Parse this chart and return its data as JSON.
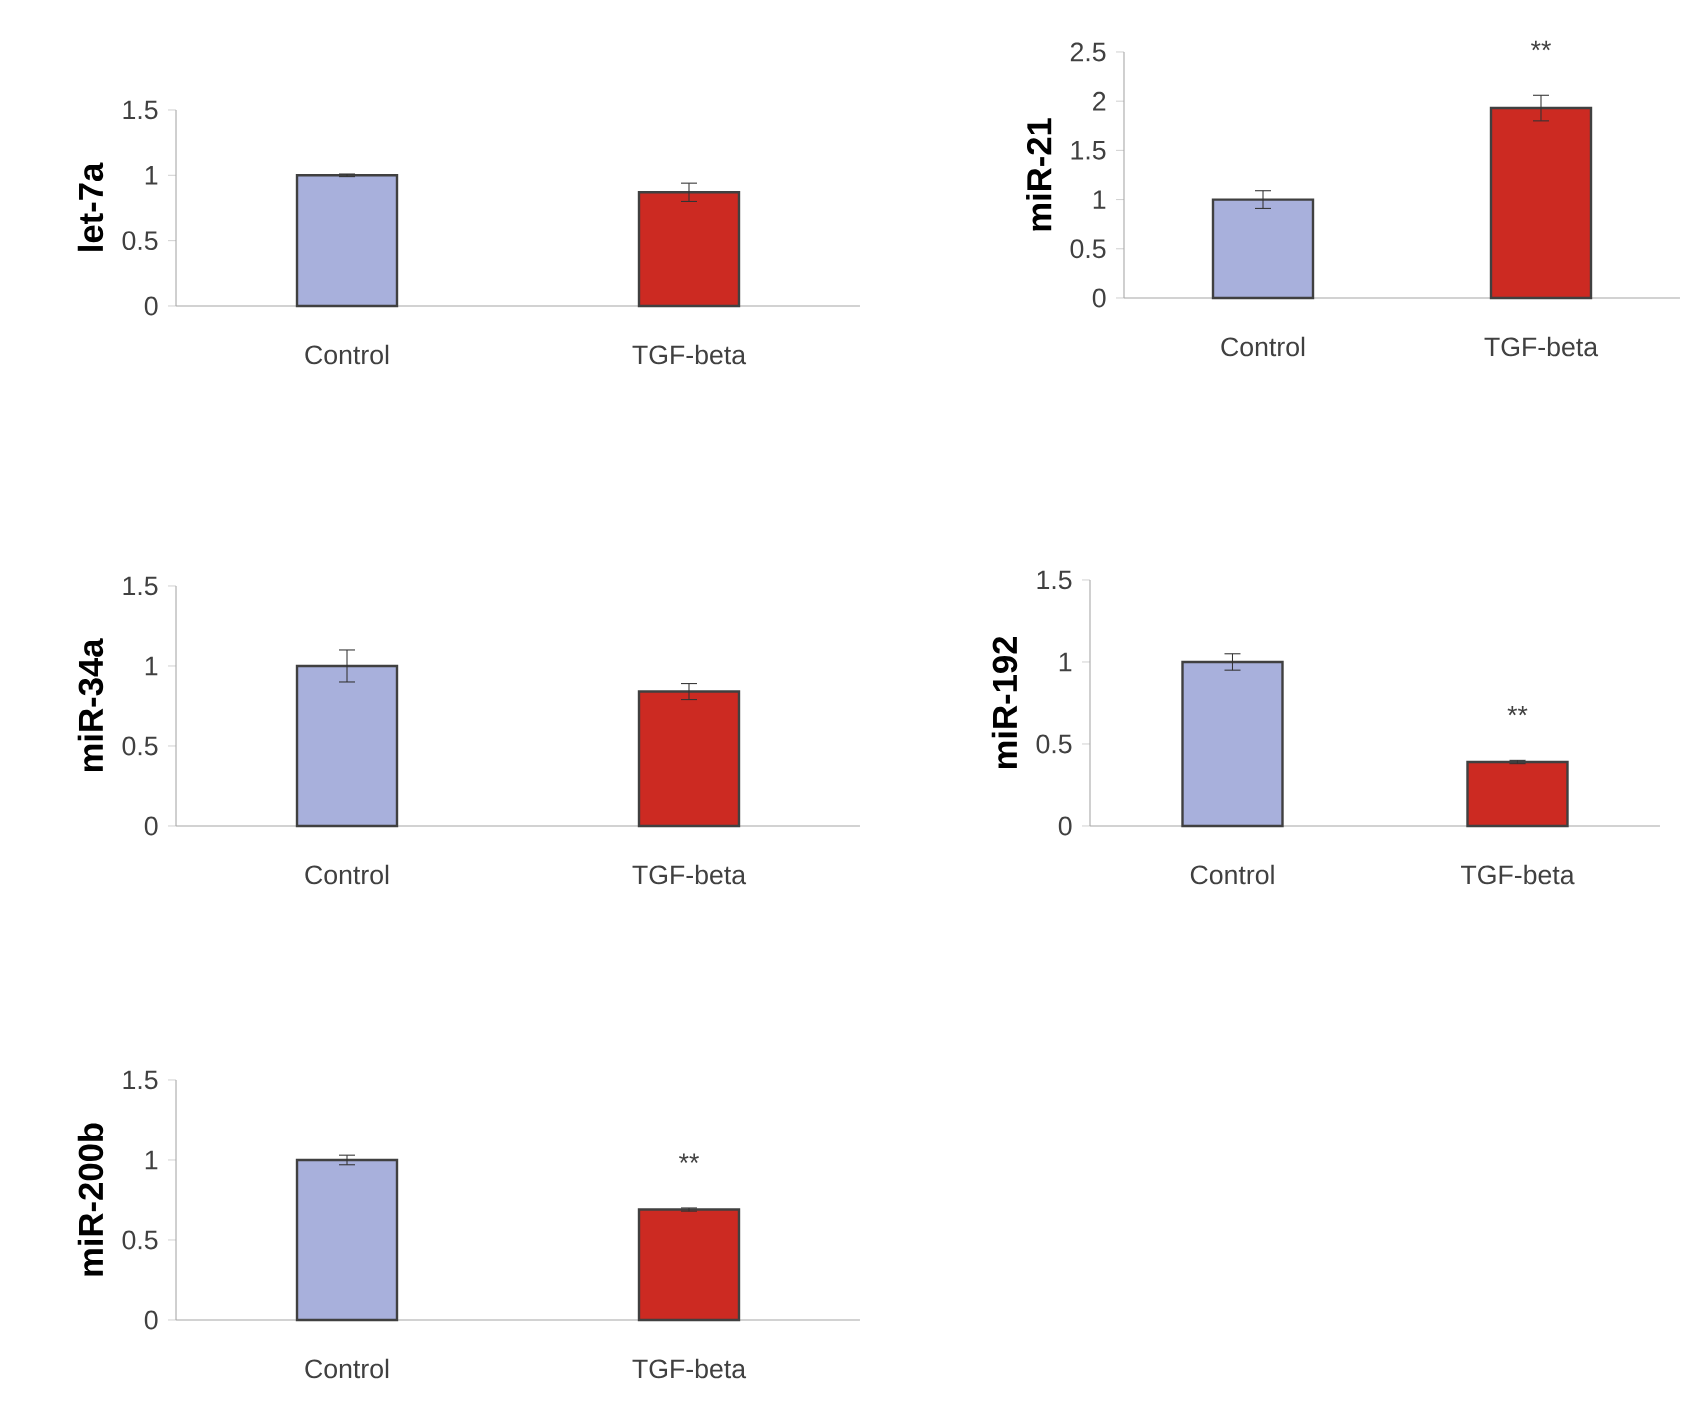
{
  "chart_data": [
    {
      "type": "bar",
      "ylabel": "let-7a",
      "categories": [
        "Control",
        "TGF-beta"
      ],
      "values": [
        1.0,
        0.87
      ],
      "errors": [
        0.01,
        0.07
      ],
      "colors": [
        "#a8b0dc",
        "#cc2a22"
      ],
      "ylim": [
        0,
        1.5
      ],
      "yticks": [
        0,
        0.5,
        1,
        1.5
      ]
    },
    {
      "type": "bar",
      "ylabel": "miR-21",
      "categories": [
        "Control",
        "TGF-beta"
      ],
      "values": [
        1.0,
        1.93
      ],
      "errors": [
        0.09,
        0.13
      ],
      "colors": [
        "#a8b0dc",
        "#cc2a22"
      ],
      "ylim": [
        0,
        2.5
      ],
      "yticks": [
        0,
        0.5,
        1,
        1.5,
        2,
        2.5
      ],
      "annotations": [
        "**"
      ]
    },
    {
      "type": "bar",
      "ylabel": "miR-34a",
      "categories": [
        "Control",
        "TGF-beta"
      ],
      "values": [
        1.0,
        0.84
      ],
      "errors": [
        0.1,
        0.05
      ],
      "colors": [
        "#a8b0dc",
        "#cc2a22"
      ],
      "ylim": [
        0,
        1.5
      ],
      "yticks": [
        0,
        0.5,
        1,
        1.5
      ]
    },
    {
      "type": "bar",
      "ylabel": "miR-192",
      "categories": [
        "Control",
        "TGF-beta"
      ],
      "values": [
        1.0,
        0.39
      ],
      "errors": [
        0.05,
        0.01
      ],
      "colors": [
        "#a8b0dc",
        "#cc2a22"
      ],
      "ylim": [
        0,
        1.5
      ],
      "yticks": [
        0,
        0.5,
        1,
        1.5
      ],
      "annotations": [
        "**"
      ]
    },
    {
      "type": "bar",
      "ylabel": "miR-200b",
      "categories": [
        "Control",
        "TGF-beta"
      ],
      "values": [
        1.0,
        0.69
      ],
      "errors": [
        0.03,
        0.01
      ],
      "colors": [
        "#a8b0dc",
        "#cc2a22"
      ],
      "ylim": [
        0,
        1.5
      ],
      "yticks": [
        0,
        0.5,
        1,
        1.5
      ],
      "annotations": [
        "**"
      ]
    }
  ]
}
